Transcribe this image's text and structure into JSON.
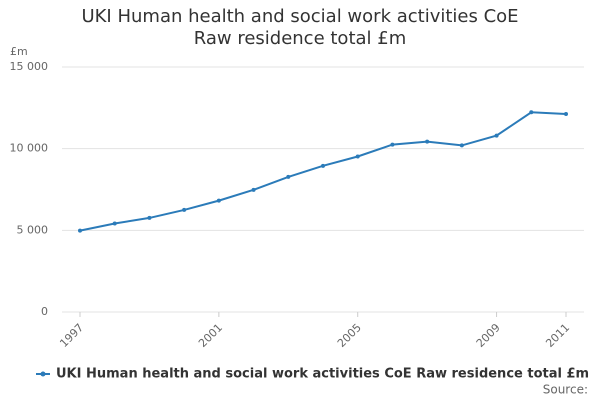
{
  "chart_data": {
    "type": "line",
    "title": "UKI Human health and social work activities CoE Raw residence total £m",
    "y_unit": "£m",
    "source": "Source:",
    "x": [
      1997,
      1998,
      1999,
      2000,
      2001,
      2002,
      2003,
      2004,
      2005,
      2006,
      2007,
      2008,
      2009,
      2010,
      2011
    ],
    "series": [
      {
        "name": "UKI Human health and social work activities CoE Raw residence total £m",
        "color": "#2b7bb9",
        "values": [
          4980,
          5420,
          5760,
          6250,
          6820,
          7480,
          8270,
          8950,
          9520,
          10250,
          10430,
          10200,
          10800,
          12230,
          12120
        ]
      }
    ],
    "xlim": [
      1997,
      2011
    ],
    "xticks": [
      1997,
      2001,
      2005,
      2009,
      2011
    ],
    "ylim": [
      0,
      15000
    ],
    "yticks": [
      0,
      {
        "value": 5000,
        "label": "5 000"
      },
      {
        "value": 10000,
        "label": "10 000"
      },
      {
        "value": 15000,
        "label": "15 000"
      }
    ],
    "grid": true
  }
}
